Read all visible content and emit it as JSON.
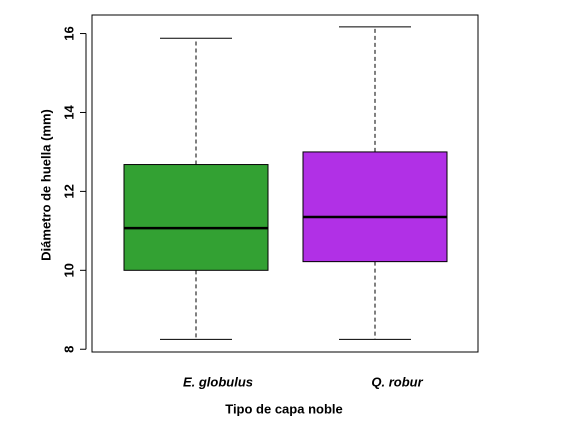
{
  "chart_data": {
    "type": "box",
    "x_label": "Tipo de capa noble",
    "y_label": "Diámetro de huella  (mm)",
    "categories": [
      "E. globulus",
      "Q. robur"
    ],
    "colors": [
      "#33a133",
      "#b130e6"
    ],
    "boxes": [
      {
        "min": 8.25,
        "q1": 10.0,
        "median": 11.07,
        "q3": 12.68,
        "max": 15.88
      },
      {
        "min": 8.25,
        "q1": 10.22,
        "median": 11.35,
        "q3": 13.0,
        "max": 16.17
      }
    ],
    "ylim": [
      7.93,
      16.47
    ],
    "yticks": [
      8,
      10,
      12,
      14,
      16
    ]
  }
}
